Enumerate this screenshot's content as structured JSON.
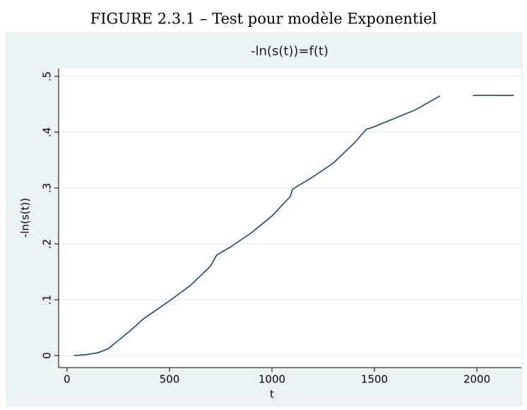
{
  "caption": "FIGURE 2.3.1 – Test pour modèle Exponentiel",
  "chart_data": {
    "type": "line",
    "title": "-ln(s(t))=f(t)",
    "xlabel": "t",
    "ylabel": "-ln(s(t))",
    "x": [
      35,
      100,
      150,
      200,
      250,
      300,
      350,
      370,
      500,
      600,
      700,
      730,
      800,
      900,
      1000,
      1090,
      1100,
      1200,
      1300,
      1400,
      1460,
      1500,
      1600,
      1700,
      1820,
      1900,
      1980,
      2180
    ],
    "series": [
      {
        "name": "-ln(s(t))",
        "color": "#1a476f",
        "values": [
          0,
          0.002,
          0.005,
          0.012,
          0.027,
          0.042,
          0.058,
          0.065,
          0.098,
          0.125,
          0.16,
          0.18,
          0.195,
          0.22,
          0.25,
          0.285,
          0.298,
          0.32,
          0.345,
          0.38,
          0.405,
          0.41,
          0.425,
          0.44,
          0.465,
          null,
          0.466,
          0.466
        ]
      }
    ],
    "xlim": [
      -41,
      2217
    ],
    "xticks": [
      0,
      500,
      1000,
      1500,
      2000
    ],
    "ylim": [
      -0.0215,
      0.514
    ],
    "yticks": [
      0,
      {
        "value": 0.1,
        "label": ".1"
      },
      {
        "value": 0.2,
        "label": ".2"
      },
      {
        "value": 0.3,
        "label": ".3"
      },
      {
        "value": 0.4,
        "label": ".4"
      },
      {
        "value": 0.5,
        "label": ".5"
      }
    ],
    "grid": true
  }
}
